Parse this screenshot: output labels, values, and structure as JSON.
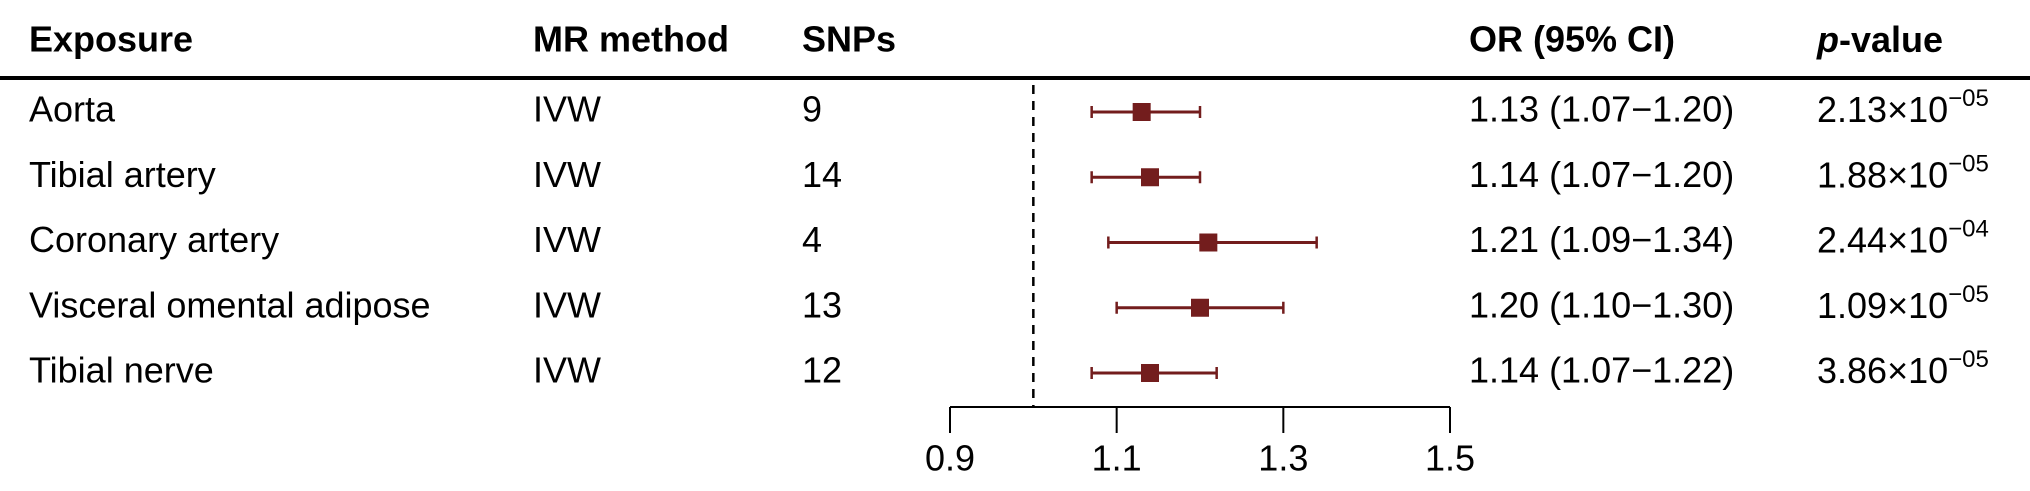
{
  "chart_data": {
    "type": "forest",
    "headers": {
      "exposure": "Exposure",
      "method": "MR method",
      "snps": "SNPs",
      "or": "OR (95% CI)",
      "p_italic": "p",
      "p_rest": "-value"
    },
    "categories": [
      "Aorta",
      "Tibial artery",
      "Coronary artery",
      "Visceral omental adipose",
      "Tibial nerve"
    ],
    "methods": [
      "IVW",
      "IVW",
      "IVW",
      "IVW",
      "IVW"
    ],
    "snps": [
      9,
      14,
      4,
      13,
      12
    ],
    "values": [
      1.13,
      1.14,
      1.21,
      1.2,
      1.14
    ],
    "lower": [
      1.07,
      1.07,
      1.09,
      1.1,
      1.07
    ],
    "upper": [
      1.2,
      1.2,
      1.34,
      1.3,
      1.22
    ],
    "value_labels": [
      "1.13 (1.07−1.20)",
      "1.14 (1.07−1.20)",
      "1.21 (1.09−1.34)",
      "1.20 (1.10−1.30)",
      "1.14 (1.07−1.22)"
    ],
    "p_values": [
      {
        "base": "2.13×10",
        "exponent": "−05"
      },
      {
        "base": "1.88×10",
        "exponent": "−05"
      },
      {
        "base": "2.44×10",
        "exponent": "−04"
      },
      {
        "base": "1.09×10",
        "exponent": "−05"
      },
      {
        "base": "3.86×10",
        "exponent": "−05"
      }
    ],
    "reference": 1,
    "color": "#731d1d",
    "xlim": [
      0.9,
      1.5
    ],
    "xticks": [
      0.9,
      1.1,
      1.3,
      1.5
    ]
  }
}
